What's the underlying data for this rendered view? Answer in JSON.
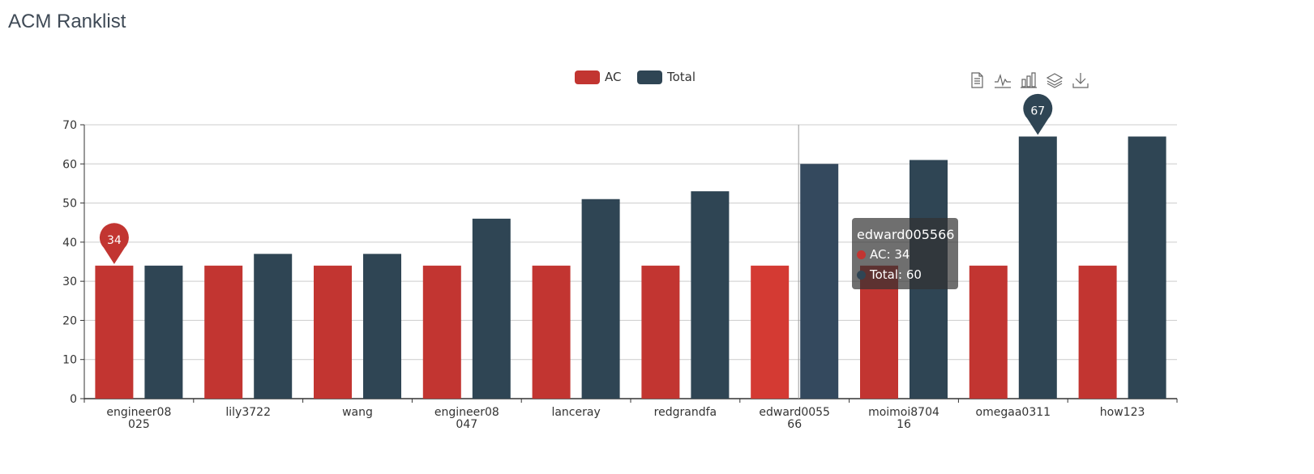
{
  "page": {
    "title": "ACM Ranklist"
  },
  "toolbox": {
    "icons": [
      "data-view-icon",
      "line-chart-icon",
      "bar-chart-icon",
      "stack-icon",
      "download-icon"
    ]
  },
  "tooltip": {
    "title": "edward005566",
    "rows": [
      {
        "label": "AC",
        "value": 34,
        "color": "#c23531"
      },
      {
        "label": "Total",
        "value": 60,
        "color": "#2f4554"
      }
    ]
  },
  "chart_data": {
    "type": "bar",
    "categories": [
      "engineer08025",
      "lily3722",
      "wang",
      "engineer08047",
      "lanceray",
      "redgrandfa",
      "edward005566",
      "moimoi870416",
      "omegaa0311",
      "how123"
    ],
    "series": [
      {
        "name": "AC",
        "color": "#c23531",
        "values": [
          34,
          34,
          34,
          34,
          34,
          34,
          34,
          34,
          34,
          34
        ]
      },
      {
        "name": "Total",
        "color": "#2f4554",
        "values": [
          34,
          37,
          37,
          46,
          51,
          53,
          60,
          61,
          67,
          67
        ]
      }
    ],
    "ylim": [
      0,
      70
    ],
    "yticks": [
      0,
      10,
      20,
      30,
      40,
      50,
      60,
      70
    ],
    "grid": true,
    "legend": "top-center",
    "markers": [
      {
        "series": "AC",
        "category": "engineer08025",
        "label": "34"
      },
      {
        "series": "Total",
        "category": "omegaa0311",
        "label": "67"
      }
    ],
    "highlight_category": "edward005566",
    "highlight_colors": {
      "AC": "#d43a33",
      "Total": "#34495e"
    }
  }
}
